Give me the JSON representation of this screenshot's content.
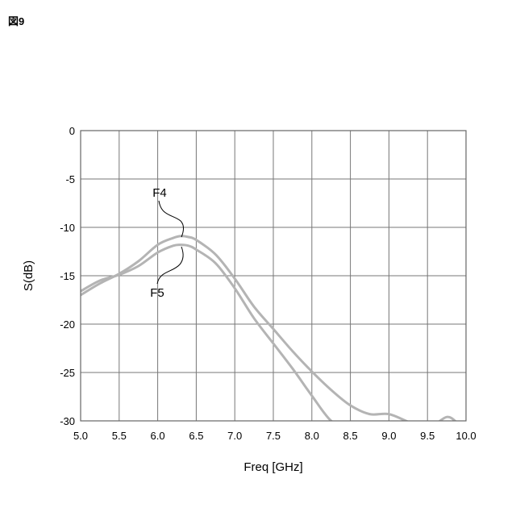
{
  "figure_label": "図9",
  "chart_data": {
    "type": "line",
    "title": "",
    "xlabel": "Freq [GHz]",
    "ylabel": "S(dB)",
    "xlim": [
      5.0,
      10.0
    ],
    "ylim": [
      -30,
      0
    ],
    "x_ticks": [
      "5.0",
      "5.5",
      "6.0",
      "6.5",
      "7.0",
      "7.5",
      "8.0",
      "8.5",
      "9.0",
      "9.5",
      "10.0"
    ],
    "y_ticks": [
      "0",
      "-5",
      "-10",
      "-15",
      "-20",
      "-25",
      "-30"
    ],
    "grid": true,
    "line_color": "#b4b4b4",
    "series": [
      {
        "name": "F4",
        "x": [
          5.0,
          5.25,
          5.5,
          5.75,
          6.0,
          6.2,
          6.3,
          6.4,
          6.5,
          6.75,
          7.0,
          7.25,
          7.5,
          7.75,
          8.0,
          8.25,
          8.5,
          8.75,
          9.0,
          9.25,
          9.5,
          9.75,
          9.9,
          10.0
        ],
        "y": [
          -17.0,
          -15.8,
          -14.8,
          -13.5,
          -11.8,
          -11.1,
          -10.9,
          -11.0,
          -11.3,
          -12.8,
          -15.3,
          -18.2,
          -20.5,
          -22.8,
          -24.9,
          -26.8,
          -28.4,
          -29.3,
          -29.3,
          -30.1,
          -30.8,
          -29.6,
          -30.3,
          -30.8
        ]
      },
      {
        "name": "F5",
        "x": [
          5.0,
          5.25,
          5.5,
          5.75,
          6.0,
          6.2,
          6.3,
          6.4,
          6.5,
          6.75,
          7.0,
          7.25,
          7.5,
          7.75,
          8.0,
          8.25,
          8.5
        ],
        "y": [
          -16.6,
          -15.5,
          -14.9,
          -14.0,
          -12.6,
          -11.9,
          -11.8,
          -11.9,
          -12.3,
          -13.7,
          -16.3,
          -19.4,
          -22.0,
          -24.6,
          -27.4,
          -30.0,
          -31.0
        ]
      }
    ]
  }
}
